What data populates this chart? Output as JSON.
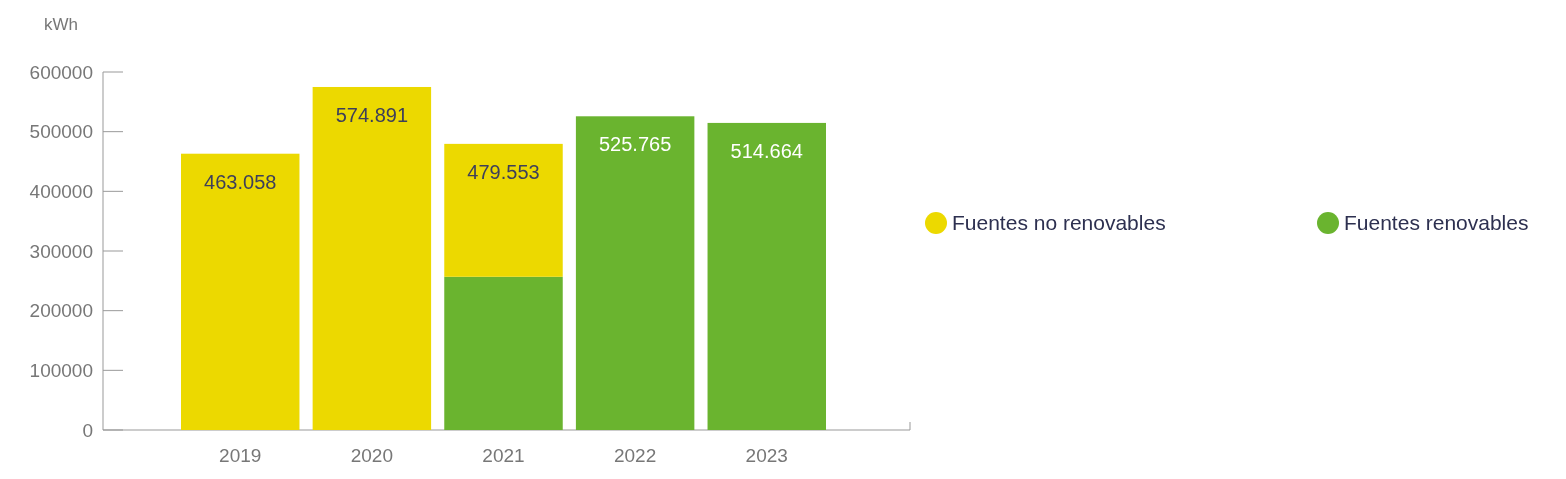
{
  "chart_data": {
    "type": "bar",
    "stacked": true,
    "ylabel": "kWh",
    "categories": [
      "2019",
      "2020",
      "2021",
      "2022",
      "2023"
    ],
    "series": [
      {
        "name": "Fuentes renovables",
        "color": "#6ab42f",
        "values": [
          null,
          null,
          256800,
          525765,
          514664
        ]
      },
      {
        "name": "Fuentes no renovables",
        "color": "#ecd900",
        "values": [
          463058,
          574891,
          222753,
          null,
          null
        ]
      }
    ],
    "totals": [
      "463.058",
      "574.891",
      "479.553",
      "525.765",
      "514.664"
    ],
    "ylim": [
      0,
      600000
    ],
    "yticks": [
      0,
      100000,
      200000,
      300000,
      400000,
      500000,
      600000
    ],
    "legend": "right"
  }
}
